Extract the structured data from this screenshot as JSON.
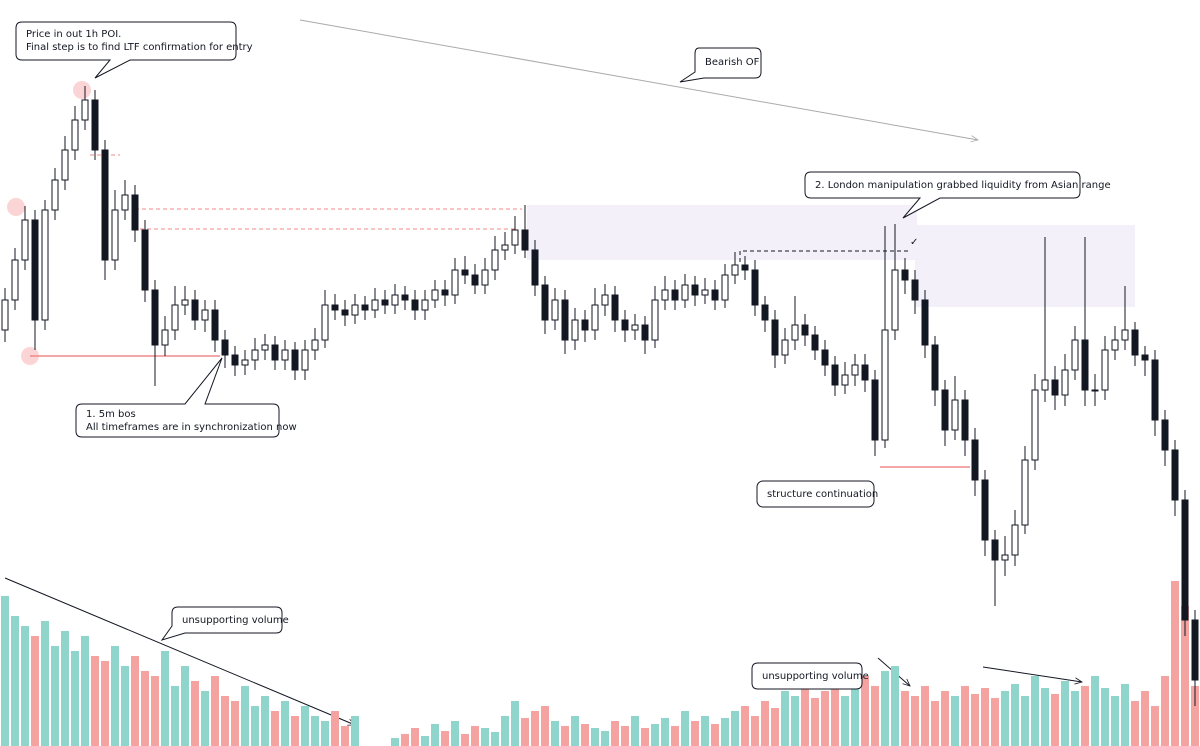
{
  "chart_data": {
    "type": "candlestick",
    "open": [
      416,
      446,
      486,
      526,
      426,
      536,
      566,
      596,
      626,
      646,
      596,
      486,
      536,
      551,
      516,
      456,
      401,
      416,
      441,
      446,
      426,
      436,
      406,
      391,
      381,
      386,
      396,
      401,
      386,
      396,
      376,
      396,
      406,
      441,
      436,
      431,
      441,
      436,
      446,
      441,
      451,
      446,
      436,
      446,
      456,
      451,
      476,
      471,
      461,
      476,
      496,
      501,
      516,
      496,
      461,
      426,
      446,
      406,
      426,
      416,
      441,
      451,
      426,
      416,
      421,
      406,
      446,
      456,
      446,
      461,
      451,
      456,
      446,
      471,
      481,
      476,
      441,
      426,
      391,
      406,
      421,
      411,
      396,
      381,
      361,
      371,
      381,
      366,
      306,
      416,
      476,
      466,
      446,
      401,
      356,
      316,
      346,
      306,
      266,
      206,
      186,
      191,
      221,
      286,
      356,
      366,
      351,
      376,
      406,
      356,
      356,
      396,
      406,
      416,
      391,
      386,
      326,
      296,
      246,
      126
    ],
    "high": [
      458,
      498,
      540,
      536,
      546,
      578,
      610,
      640,
      660,
      656,
      606,
      556,
      566,
      561,
      526,
      466,
      430,
      460,
      460,
      456,
      446,
      446,
      416,
      400,
      396,
      408,
      412,
      410,
      406,
      404,
      406,
      418,
      456,
      452,
      446,
      452,
      450,
      458,
      456,
      462,
      460,
      456,
      456,
      466,
      466,
      488,
      490,
      482,
      488,
      510,
      514,
      530,
      541,
      506,
      470,
      458,
      456,
      438,
      436,
      458,
      462,
      460,
      436,
      432,
      430,
      460,
      470,
      466,
      472,
      470,
      468,
      466,
      482,
      494,
      490,
      486,
      450,
      436,
      418,
      450,
      432,
      420,
      406,
      390,
      384,
      392,
      392,
      376,
      520,
      522,
      488,
      476,
      456,
      410,
      366,
      370,
      356,
      318,
      276,
      216,
      210,
      236,
      300,
      372,
      509,
      380,
      392,
      420,
      509,
      372,
      410,
      420,
      460,
      424,
      400,
      396,
      336,
      306,
      256,
      136
    ],
    "low": [
      404,
      436,
      476,
      396,
      416,
      526,
      556,
      586,
      616,
      586,
      466,
      476,
      526,
      504,
      444,
      360,
      390,
      406,
      431,
      416,
      414,
      394,
      378,
      370,
      371,
      376,
      386,
      376,
      376,
      366,
      366,
      386,
      398,
      426,
      420,
      422,
      426,
      428,
      432,
      432,
      436,
      426,
      426,
      438,
      440,
      442,
      462,
      452,
      452,
      466,
      486,
      492,
      488,
      450,
      412,
      416,
      392,
      396,
      404,
      406,
      430,
      414,
      404,
      406,
      392,
      398,
      436,
      436,
      438,
      440,
      442,
      436,
      438,
      462,
      466,
      430,
      414,
      378,
      382,
      396,
      400,
      386,
      370,
      350,
      352,
      360,
      354,
      290,
      298,
      406,
      452,
      432,
      388,
      340,
      300,
      306,
      290,
      250,
      190,
      140,
      170,
      180,
      212,
      276,
      344,
      336,
      340,
      366,
      340,
      340,
      346,
      386,
      396,
      380,
      370,
      310,
      280,
      230,
      110,
      40
    ],
    "close": [
      446,
      486,
      526,
      426,
      536,
      566,
      596,
      626,
      646,
      596,
      486,
      536,
      551,
      516,
      456,
      401,
      416,
      441,
      446,
      426,
      436,
      406,
      391,
      381,
      386,
      396,
      401,
      386,
      396,
      376,
      396,
      406,
      441,
      436,
      431,
      441,
      436,
      446,
      441,
      451,
      446,
      436,
      446,
      456,
      451,
      476,
      471,
      461,
      476,
      496,
      501,
      516,
      496,
      461,
      426,
      446,
      406,
      426,
      416,
      441,
      451,
      426,
      416,
      421,
      406,
      446,
      456,
      446,
      461,
      451,
      456,
      446,
      471,
      481,
      476,
      441,
      426,
      391,
      406,
      421,
      411,
      396,
      381,
      361,
      371,
      381,
      366,
      306,
      416,
      476,
      466,
      446,
      401,
      356,
      316,
      346,
      306,
      266,
      206,
      186,
      191,
      221,
      286,
      356,
      366,
      351,
      376,
      406,
      356,
      356,
      396,
      406,
      416,
      391,
      386,
      326,
      296,
      246,
      126,
      66
    ],
    "volume": [
      150,
      130,
      120,
      110,
      125,
      100,
      115,
      95,
      110,
      90,
      85,
      100,
      80,
      90,
      75,
      70,
      95,
      60,
      80,
      65,
      55,
      70,
      50,
      45,
      60,
      40,
      50,
      35,
      45,
      30,
      40,
      30,
      25,
      35,
      20,
      30,
      0,
      0,
      0,
      8,
      12,
      18,
      10,
      22,
      15,
      25,
      12,
      20,
      18,
      14,
      30,
      45,
      28,
      35,
      40,
      25,
      20,
      30,
      22,
      18,
      15,
      25,
      20,
      30,
      18,
      22,
      28,
      20,
      35,
      25,
      30,
      22,
      28,
      35,
      40,
      30,
      45,
      38,
      55,
      50,
      60,
      48,
      55,
      65,
      50,
      58,
      70,
      60,
      75,
      80,
      55,
      50,
      60,
      45,
      55,
      50,
      60,
      52,
      58,
      48,
      55,
      62,
      50,
      70,
      58,
      52,
      65,
      55,
      60,
      70,
      58,
      50,
      62,
      45,
      55,
      40,
      70,
      165,
      140,
      60
    ],
    "ylim": [
      0,
      746
    ],
    "volume_ylim": [
      0,
      746
    ],
    "up_color": "#ffffff",
    "down_color": "#131722",
    "volume_up_color": "#8fd5cc",
    "volume_down_color": "#f5a3a0",
    "annotations": {
      "poi": [
        "Price in out 1h POI.",
        "Final step is to find LTF confirmation for entry"
      ],
      "bearish": "Bearish OF",
      "london": "2. London manipulation grabbed liquidity from Asian range",
      "bos": [
        "1. 5m bos",
        "All timeframes are in synchronization now"
      ],
      "structure": "structure continuation",
      "volume_left": "unsupporting volume",
      "volume_right": "unsupporting volume",
      "check": "✓"
    }
  }
}
